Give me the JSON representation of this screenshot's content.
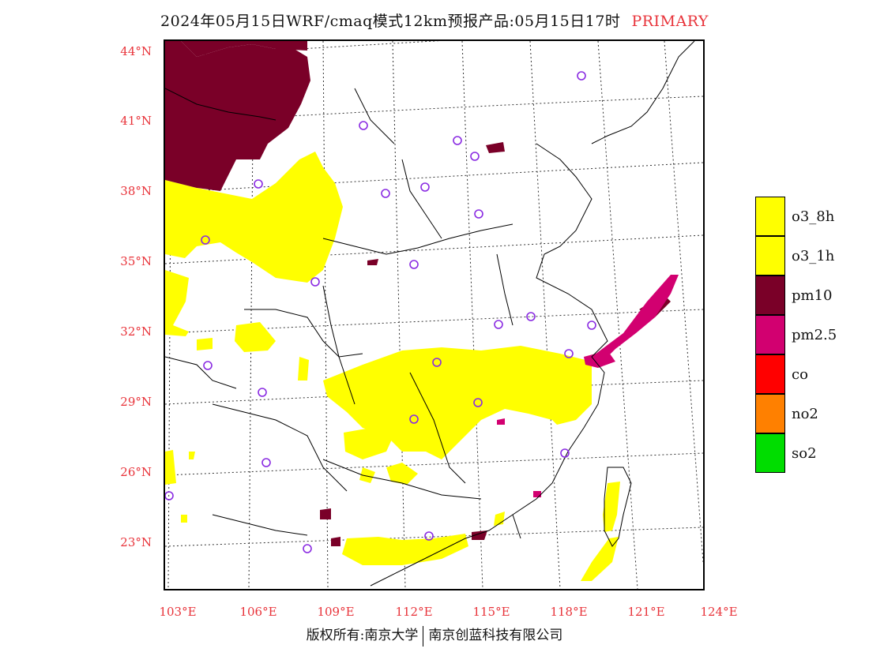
{
  "title": {
    "main": "2024年05月15日WRF/cmaq模式12km预报产品:05月15日17时",
    "tag": "PRIMARY"
  },
  "axes": {
    "lat_labels": [
      "44°N",
      "41°N",
      "38°N",
      "35°N",
      "32°N",
      "29°N",
      "26°N",
      "23°N"
    ],
    "lon_labels": [
      "103°E",
      "106°E",
      "109°E",
      "112°E",
      "115°E",
      "118°E",
      "121°E",
      "124°E"
    ]
  },
  "legend": [
    {
      "label": "o3_8h",
      "color": "#ffff00"
    },
    {
      "label": "o3_1h",
      "color": "#ffff00"
    },
    {
      "label": "pm10",
      "color": "#7a0028"
    },
    {
      "label": "pm2.5",
      "color": "#d20070"
    },
    {
      "label": "co",
      "color": "#ff0000"
    },
    {
      "label": "no2",
      "color": "#ff8000"
    },
    {
      "label": "so2",
      "color": "#00dd00"
    }
  ],
  "footer": {
    "left": "版权所有:南京大学",
    "right": "南京创蓝科技有限公司"
  },
  "colors": {
    "o3": "#ffff00",
    "pm10": "#7a0028",
    "pm25": "#d20070",
    "station": "#8a2be2",
    "label_red": "#e8333a"
  }
}
